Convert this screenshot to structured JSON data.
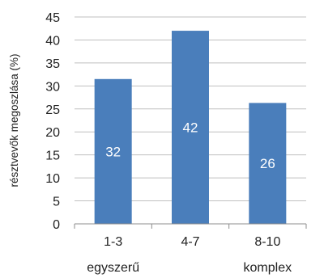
{
  "chart_data": {
    "type": "bar",
    "categories": [
      "1-3",
      "4-7",
      "8-10"
    ],
    "category_sublabels": [
      "egyszerű",
      "",
      "komplex"
    ],
    "values": [
      31.5,
      42,
      26.3
    ],
    "data_labels": [
      "32",
      "42",
      "26"
    ],
    "ylabel": "résztvevők megoszlása (%)",
    "ylim": [
      0,
      45
    ],
    "yticks": [
      0,
      5,
      10,
      15,
      20,
      25,
      30,
      35,
      40,
      45
    ],
    "grid": true,
    "legend": "none",
    "bar_color": "#4a7ebb",
    "grid_color": "#bfbfbf",
    "axis_color": "#8c8c8c"
  }
}
